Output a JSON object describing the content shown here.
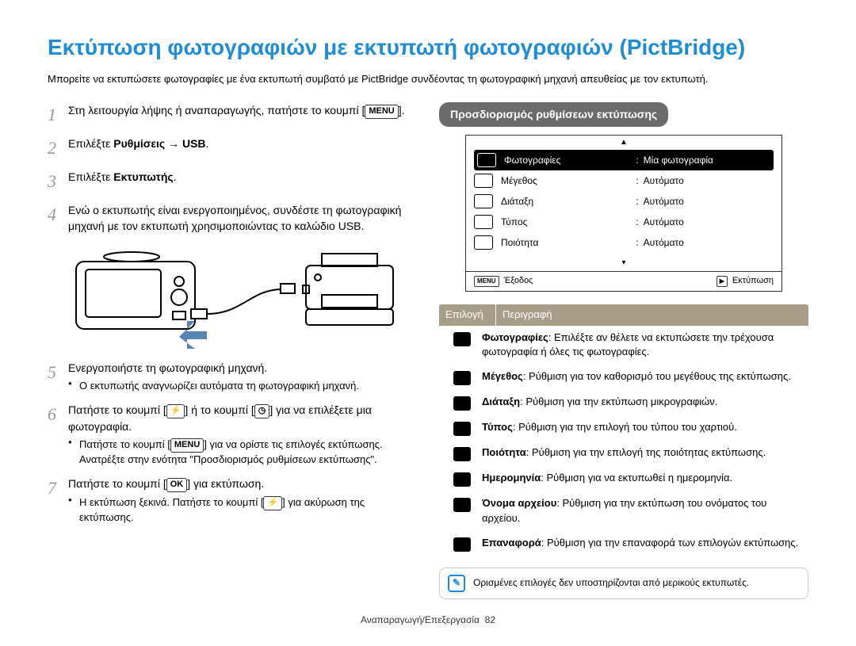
{
  "title": "Εκτύπωση φωτογραφιών με εκτυπωτή φωτογραφιών (PictBridge)",
  "title_color": "#1f8dd6",
  "intro": "Μπορείτε να εκτυπώσετε φωτογραφίες με ένα εκτυπωτή συμβατό με PictBridge συνδέοντας τη φωτογραφική μηχανή απευθείας με τον εκτυπωτή.",
  "steps": {
    "s1_a": "Στη λειτουργία λήψης ή αναπαραγωγής, πατήστε το κουμπί [",
    "s1_btn": "MENU",
    "s1_b": "].",
    "s2_a": "Επιλέξτε ",
    "s2_b": "Ρυθμίσεις → USB",
    "s2_c": ".",
    "s3_a": "Επιλέξτε ",
    "s3_b": "Εκτυπωτής",
    "s3_c": ".",
    "s4": "Ενώ ο εκτυπωτής είναι ενεργοποιημένος, συνδέστε τη φωτογραφική μηχανή με τον εκτυπωτή χρησιμοποιώντας το καλώδιο USB.",
    "s5": "Ενεργοποιήστε τη φωτογραφική μηχανή.",
    "s5_sub": "Ο εκτυπωτής αναγνωρίζει αυτόματα τη φωτογραφική μηχανή.",
    "s6_a": "Πατήστε το κουμπί [",
    "s6_b": "] ή το κουμπί [",
    "s6_c": "] για να επιλέξετε μια φωτογραφία.",
    "s6_sub_a": "Πατήστε το κουμπί [",
    "s6_sub_btn": "MENU",
    "s6_sub_b": "] για να ορίστε τις επιλογές εκτύπωσης. Ανατρέξτε στην ενότητα \"Προσδιορισμός ρυθμίσεων εκτύπωσης\".",
    "s7_a": "Πατήστε το κουμπί [",
    "s7_btn": "OK",
    "s7_b": "] για εκτύπωση.",
    "s7_sub_a": "Η εκτύπωση ξεκινά. Πατήστε το κουμπί [",
    "s7_sub_b": "] για ακύρωση της εκτύπωσης."
  },
  "right_section_header": "Προσδιορισμός ρυθμίσεων εκτύπωσης",
  "screen": {
    "rows": [
      {
        "label": "Φωτογραφίες",
        "value": "Μία φωτογραφία",
        "hi": true
      },
      {
        "label": "Μέγεθος",
        "value": "Αυτόματο",
        "hi": false
      },
      {
        "label": "Διάταξη",
        "value": "Αυτόματο",
        "hi": false
      },
      {
        "label": "Τύπος",
        "value": "Αυτόματο",
        "hi": false
      },
      {
        "label": "Ποιότητα",
        "value": "Αυτόματο",
        "hi": false
      }
    ],
    "bottom_left_btn": "MENU",
    "bottom_left": "Έξοδος",
    "bottom_right_btn": "▶",
    "bottom_right": "Εκτύπωση"
  },
  "options_header": {
    "c1": "Επιλογή",
    "c2": "Περιγραφή"
  },
  "options": [
    {
      "bold": "Φωτογραφίες",
      "text": ": Επιλέξτε αν θέλετε να εκτυπώσετε την τρέχουσα φωτογραφία ή όλες τις φωτογραφίες."
    },
    {
      "bold": "Μέγεθος",
      "text": ": Ρύθμιση για τον καθορισμό του μεγέθους της εκτύπωσης."
    },
    {
      "bold": "Διάταξη",
      "text": ": Ρύθμιση για την εκτύπωση μικρογραφιών."
    },
    {
      "bold": "Τύπος",
      "text": ": Ρύθμιση για την επιλογή του τύπου του χαρτιού."
    },
    {
      "bold": "Ποιότητα",
      "text": ": Ρύθμιση για την επιλογή της ποιότητας εκτύπωσης."
    },
    {
      "bold": "Ημερομηνία",
      "text": ": Ρύθμιση για να εκτυπωθεί η ημερομηνία."
    },
    {
      "bold": "Όνομα αρχείου",
      "text": ": Ρύθμιση για την εκτύπωση του ονόματος του αρχείου."
    },
    {
      "bold": "Επαναφορά",
      "text": ": Ρύθμιση για την επαναφορά των επιλογών εκτύπωσης."
    }
  ],
  "note": "Ορισμένες επιλογές δεν υποστηρίζονται από μερικούς εκτυπωτές.",
  "footer_label": "Αναπαραγωγή/Επεξεργασία",
  "footer_page": "82"
}
